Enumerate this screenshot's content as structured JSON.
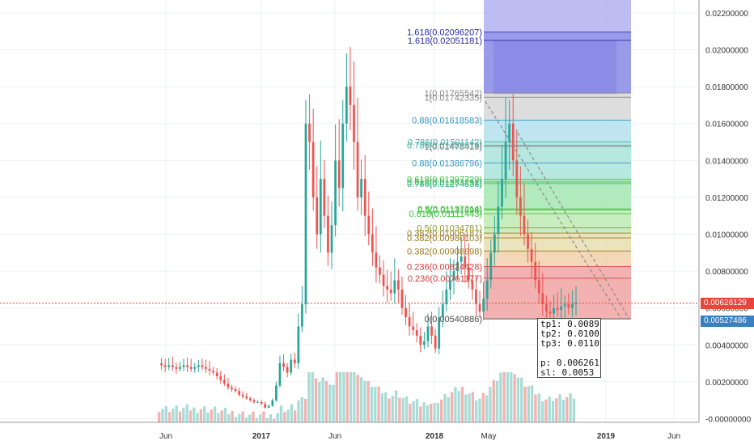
{
  "chart_data": {
    "type": "candlestick",
    "title": "",
    "xlabel": "",
    "ylabel": "",
    "ylim": [
      -0.0002,
      0.0227
    ],
    "y_ticks": [
      "0.02200000",
      "0.02000000",
      "0.01800000",
      "0.01600000",
      "0.01400000",
      "0.01200000",
      "0.01000000",
      "0.00800000",
      "0.00600000",
      "0.00400000",
      "0.00200000",
      "-0.00000000"
    ],
    "y_tick_values": [
      0.022,
      0.02,
      0.018,
      0.016,
      0.014,
      0.012,
      0.01,
      0.008,
      0.006,
      0.004,
      0.002,
      0.0
    ],
    "x_ticks": [
      {
        "label": "Jun",
        "bold": false
      },
      {
        "label": "2017",
        "bold": true
      },
      {
        "label": "Jun",
        "bold": false
      },
      {
        "label": "2018",
        "bold": true
      },
      {
        "label": "May",
        "bold": false
      },
      {
        "label": "2019",
        "bold": true
      },
      {
        "label": "Jun",
        "bold": false
      }
    ],
    "price_path": [
      0.003,
      0.0029,
      0.0028,
      0.0029,
      0.0028,
      0.0027,
      0.0028,
      0.0029,
      0.0028,
      0.0027,
      0.0028,
      0.0029,
      0.0028,
      0.0027,
      0.0026,
      0.0025,
      0.0023,
      0.0021,
      0.0019,
      0.0017,
      0.0016,
      0.0015,
      0.0013,
      0.0012,
      0.0011,
      0.001,
      0.0009,
      0.0009,
      0.0008,
      0.0006,
      0.0007,
      0.001,
      0.0018,
      0.003,
      0.0028,
      0.0025,
      0.0032,
      0.003,
      0.005,
      0.0062,
      0.016,
      0.015,
      0.012,
      0.01,
      0.013,
      0.011,
      0.009,
      0.0105,
      0.014,
      0.0125,
      0.016,
      0.018,
      0.017,
      0.015,
      0.012,
      0.013,
      0.011,
      0.01,
      0.009,
      0.0082,
      0.0078,
      0.0072,
      0.007,
      0.0068,
      0.0075,
      0.007,
      0.006,
      0.0055,
      0.005,
      0.0048,
      0.0045,
      0.004,
      0.0042,
      0.005,
      0.0045,
      0.0038,
      0.0055,
      0.0062,
      0.007,
      0.0075,
      0.008,
      0.0085,
      0.0088,
      0.0082,
      0.0075,
      0.007,
      0.0062,
      0.0058,
      0.0065,
      0.0075,
      0.009,
      0.01,
      0.0115,
      0.013,
      0.015,
      0.016,
      0.014,
      0.012,
      0.011,
      0.01,
      0.0092,
      0.0085,
      0.0075,
      0.0068,
      0.0062,
      0.0058,
      0.0057,
      0.006,
      0.0059,
      0.0061,
      0.0062,
      0.006,
      0.0062,
      0.0063
    ],
    "fib_levels": [
      {
        "label": "1.618(0.02096207)",
        "value": 0.02096207,
        "color": "#2a2aa8"
      },
      {
        "label": "1.618(0.02051181)",
        "value": 0.02051181,
        "color": "#2a2aa8"
      },
      {
        "label": "1(0.01765542)",
        "value": 0.01765542,
        "color": "#888888"
      },
      {
        "label": "1(0.01742335)",
        "value": 0.01742335,
        "color": "#888888"
      },
      {
        "label": "0.88(0.01618583)",
        "value": 0.01618583,
        "color": "#2f96c9"
      },
      {
        "label": "0.786(0.01501142)",
        "value": 0.01501142,
        "color": "#3cb0a0"
      },
      {
        "label": "0.786(0.01482519)",
        "value": 0.01482519,
        "color": "#3cb0a0"
      },
      {
        "label": "1(0.01475419)",
        "value": 0.01475419,
        "color": "#888888"
      },
      {
        "label": "0.88(0.01386796)",
        "value": 0.01386796,
        "color": "#2f96c9"
      },
      {
        "label": "0.618(0.01297729)",
        "value": 0.01297729,
        "color": "#3cc03c"
      },
      {
        "label": "0.618(0.01283291)",
        "value": 0.01283291,
        "color": "#3cc03c"
      },
      {
        "label": "0.786(0.01274538)",
        "value": 0.01274538,
        "color": "#3cb0a0"
      },
      {
        "label": "0.5(0.01137214)",
        "value": 0.01137214,
        "color": "#3cc03c"
      },
      {
        "label": "0.5(0.01131698)",
        "value": 0.01131698,
        "color": "#3cc03c"
      },
      {
        "label": "0.618(0.01111443)",
        "value": 0.01111443,
        "color": "#3cc03c"
      },
      {
        "label": "0.5(0.01034781)",
        "value": 0.01034781,
        "color": "#8a9a2a"
      },
      {
        "label": "0.382(0.01006187)",
        "value": 0.01006187,
        "color": "#9a7a20"
      },
      {
        "label": "0.382(0.00980103)",
        "value": 0.00980103,
        "color": "#9a7a20"
      },
      {
        "label": "0.382(0.00908698)",
        "value": 0.00908698,
        "color": "#9a7a20"
      },
      {
        "label": "0.236(0.00824428)",
        "value": 0.00824428,
        "color": "#d23c3c"
      },
      {
        "label": "0.236(0.00761177)",
        "value": 0.00761177,
        "color": "#d23c3c"
      },
      {
        "label": "0(0.00540886)",
        "value": 0.00540886,
        "color": "#666666"
      },
      {
        "label": "0(0.00540886)",
        "value": 0.00540886,
        "color": "#666666"
      }
    ],
    "fib_bands": [
      {
        "from": 0.0227,
        "to": 0.02096207,
        "color": "#b6b6f2"
      },
      {
        "from": 0.02096207,
        "to": 0.01765542,
        "color": "#8f8fe8"
      },
      {
        "from": 0.01765542,
        "to": 0.01618583,
        "color": "#d9d9d9"
      },
      {
        "from": 0.01618583,
        "to": 0.01501142,
        "color": "#b8e3ee"
      },
      {
        "from": 0.01501142,
        "to": 0.01297729,
        "color": "#aee6dc"
      },
      {
        "from": 0.01297729,
        "to": 0.01137214,
        "color": "#a9e8b5"
      },
      {
        "from": 0.01137214,
        "to": 0.01006187,
        "color": "#c2ecb8"
      },
      {
        "from": 0.01006187,
        "to": 0.00908698,
        "color": "#e8e0b5"
      },
      {
        "from": 0.00908698,
        "to": 0.00824428,
        "color": "#f2d3b0"
      },
      {
        "from": 0.00824428,
        "to": 0.00540886,
        "color": "#f2aaaa"
      }
    ],
    "current_price": {
      "label": "0.00626129",
      "value": 0.00626129,
      "color": "#e8453c"
    },
    "stop_price": {
      "label": "0.00527486",
      "value": 0.00527486,
      "color": "#3a7fc1"
    },
    "volume_bars": 120
  },
  "note": {
    "tp1": "tp1: 0.0089",
    "tp2": "tp2: 0.0100",
    "tp3": "tp3: 0.0110",
    "p": "p: 0.006261",
    "sl": "sl: 0.0053"
  },
  "colors": {
    "up": "#26a69a",
    "down": "#ef5350",
    "grid": "#eef0f3",
    "axis_line": "#999999"
  }
}
